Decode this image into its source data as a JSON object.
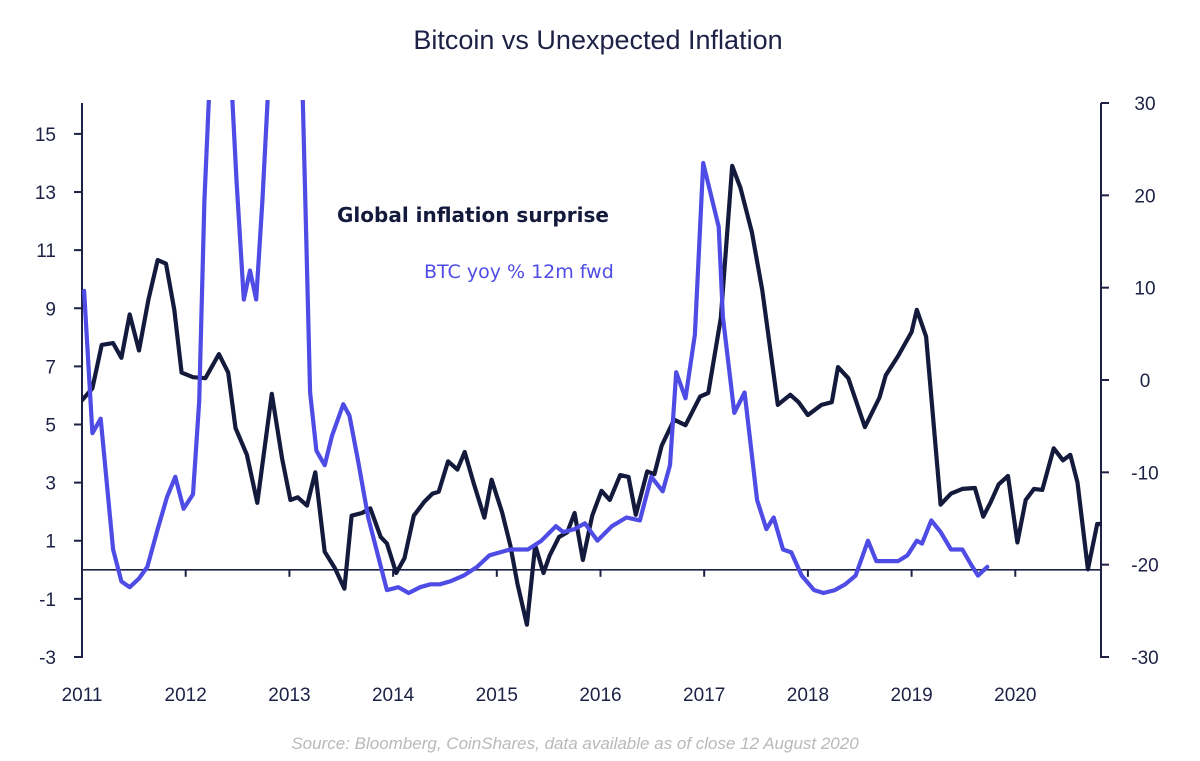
{
  "chart_data": {
    "type": "line",
    "title": "Bitcoin vs Unexpected Inflation",
    "source": "Source:  Bloomberg,  CoinShares,  data available as of close 12 August 2020",
    "x_ticks": [
      "2011",
      "2012",
      "2013",
      "2014",
      "2015",
      "2016",
      "2017",
      "2018",
      "2019",
      "2020"
    ],
    "x_range": [
      2011.0,
      2020.65
    ],
    "left_axis": {
      "ticks": [
        "15",
        "13",
        "11",
        "9",
        "7",
        "5",
        "3",
        "1",
        "-1",
        "-3"
      ],
      "tick_values": [
        15,
        13,
        11,
        9,
        7,
        5,
        3,
        1,
        -1,
        -3
      ],
      "range": [
        -3,
        16
      ]
    },
    "right_axis": {
      "ticks": [
        "30",
        "20",
        "10",
        "0",
        "-10",
        "-20",
        "-30"
      ],
      "tick_values": [
        30,
        20,
        10,
        0,
        -10,
        -20,
        -30
      ],
      "range": [
        -30,
        30
      ]
    },
    "baseline": {
      "axis": "left",
      "value": 0
    },
    "colors": {
      "inflation": "#141a3c",
      "btc": "#4f4ce6",
      "axis": "#1c2145"
    },
    "series": [
      {
        "name": "Global inflation surprise",
        "axis": "right",
        "color": "#141a3c",
        "x": [
          2011.0,
          2011.1,
          2011.19,
          2011.3,
          2011.38,
          2011.46,
          2011.55,
          2011.64,
          2011.73,
          2011.81,
          2011.89,
          2011.96,
          2012.07,
          2012.19,
          2012.32,
          2012.41,
          2012.48,
          2012.59,
          2012.69,
          2012.83,
          2012.93,
          2013.01,
          2013.08,
          2013.17,
          2013.25,
          2013.34,
          2013.44,
          2013.53,
          2013.6,
          2013.7,
          2013.78,
          2013.88,
          2013.94,
          2014.03,
          2014.11,
          2014.2,
          2014.3,
          2014.38,
          2014.44,
          2014.53,
          2014.62,
          2014.69,
          2014.78,
          2014.88,
          2014.95,
          2015.05,
          2015.13,
          2015.2,
          2015.29,
          2015.37,
          2015.45,
          2015.51,
          2015.6,
          2015.68,
          2015.75,
          2015.83,
          2015.92,
          2016.01,
          2016.09,
          2016.19,
          2016.27,
          2016.34,
          2016.45,
          2016.52,
          2016.59,
          2016.71,
          2016.82,
          2016.96,
          2017.04,
          2017.16,
          2017.27,
          2017.35,
          2017.46,
          2017.56,
          2017.71,
          2017.83,
          2017.91,
          2018.0,
          2018.13,
          2018.23,
          2018.29,
          2018.39,
          2018.55,
          2018.69,
          2018.75,
          2018.87,
          2019.0,
          2019.05,
          2019.14,
          2019.28,
          2019.38,
          2019.49,
          2019.61,
          2019.69,
          2019.76,
          2019.84,
          2019.93,
          2020.02,
          2020.1,
          2020.18,
          2020.26,
          2020.37,
          2020.46,
          2020.53,
          2020.6,
          2020.7,
          2020.79,
          2020.87
        ],
        "values": [
          -2.2,
          -0.9,
          3.8,
          4.0,
          2.4,
          7.1,
          3.2,
          8.7,
          13.0,
          12.6,
          7.6,
          0.8,
          0.3,
          0.2,
          2.8,
          0.8,
          -5.2,
          -8.1,
          -13.3,
          -1.5,
          -8.5,
          -13.0,
          -12.7,
          -13.6,
          -10.0,
          -18.6,
          -20.4,
          -22.6,
          -14.7,
          -14.4,
          -13.9,
          -17.0,
          -17.7,
          -20.9,
          -19.3,
          -14.7,
          -13.2,
          -12.3,
          -12.1,
          -8.8,
          -9.7,
          -7.8,
          -11.3,
          -14.9,
          -10.8,
          -14.3,
          -17.9,
          -22.1,
          -26.5,
          -17.9,
          -20.9,
          -19.0,
          -17.0,
          -16.5,
          -14.4,
          -19.5,
          -14.7,
          -12.0,
          -13.0,
          -10.3,
          -10.5,
          -14.6,
          -9.9,
          -10.2,
          -7.1,
          -4.3,
          -4.9,
          -1.8,
          -1.4,
          6.7,
          23.2,
          20.8,
          16.0,
          9.7,
          -2.7,
          -1.6,
          -2.4,
          -3.8,
          -2.7,
          -2.4,
          1.4,
          0.2,
          -5.1,
          -1.9,
          0.5,
          2.6,
          5.2,
          7.6,
          4.7,
          -13.5,
          -12.3,
          -11.8,
          -11.7,
          -14.8,
          -13.3,
          -11.3,
          -10.4,
          -17.6,
          -13.0,
          -11.8,
          -11.9,
          -7.4,
          -8.7,
          -8.1,
          -11.1,
          -20.5,
          -15.6,
          -15.6
        ]
      },
      {
        "name": "BTC yoy % 12m fwd",
        "axis": "left",
        "color": "#4f4ce6",
        "note": "values above 16 run off the top of the plot area (clipped)",
        "x": [
          2011.02,
          2011.1,
          2011.18,
          2011.3,
          2011.38,
          2011.46,
          2011.55,
          2011.63,
          2011.73,
          2011.82,
          2011.9,
          2011.98,
          2012.07,
          2012.13,
          2012.18,
          2012.24,
          2012.43,
          2012.49,
          2012.56,
          2012.62,
          2012.68,
          2012.74,
          2012.81,
          2012.86,
          2013.12,
          2013.2,
          2013.26,
          2013.34,
          2013.41,
          2013.52,
          2013.58,
          2013.66,
          2013.76,
          2013.94,
          2014.05,
          2014.15,
          2014.26,
          2014.36,
          2014.45,
          2014.55,
          2014.68,
          2014.81,
          2014.93,
          2015.03,
          2015.13,
          2015.3,
          2015.43,
          2015.57,
          2015.64,
          2015.75,
          2015.85,
          2015.97,
          2016.11,
          2016.25,
          2016.38,
          2016.49,
          2016.6,
          2016.67,
          2016.73,
          2016.82,
          2016.91,
          2016.99,
          2017.14,
          2017.18,
          2017.29,
          2017.39,
          2017.51,
          2017.6,
          2017.67,
          2017.76,
          2017.84,
          2017.94,
          2018.06,
          2018.15,
          2018.26,
          2018.36,
          2018.46,
          2018.58,
          2018.66,
          2018.77,
          2018.87,
          2018.96,
          2019.05,
          2019.1,
          2019.19,
          2019.28,
          2019.38,
          2019.49,
          2019.57,
          2019.64,
          2019.73
        ],
        "values": [
          9.6,
          4.7,
          5.2,
          0.7,
          -0.4,
          -0.6,
          -0.3,
          0.1,
          1.4,
          2.5,
          3.2,
          2.1,
          2.6,
          5.8,
          12.7,
          16.2,
          16.2,
          13.4,
          9.3,
          10.3,
          9.3,
          12.7,
          16.2,
          16.2,
          16.2,
          6.1,
          4.1,
          3.6,
          4.6,
          5.7,
          5.3,
          3.8,
          1.8,
          -0.7,
          -0.6,
          -0.8,
          -0.6,
          -0.5,
          -0.5,
          -0.4,
          -0.2,
          0.1,
          0.5,
          0.6,
          0.7,
          0.7,
          1.0,
          1.5,
          1.3,
          1.4,
          1.6,
          1.0,
          1.5,
          1.8,
          1.7,
          3.2,
          2.7,
          3.6,
          6.8,
          5.9,
          8.1,
          14.0,
          11.8,
          8.7,
          5.4,
          6.1,
          2.4,
          1.4,
          1.8,
          0.7,
          0.6,
          -0.2,
          -0.7,
          -0.8,
          -0.7,
          -0.5,
          -0.2,
          1.0,
          0.3,
          0.3,
          0.3,
          0.5,
          1.0,
          0.9,
          1.7,
          1.3,
          0.7,
          0.7,
          0.2,
          -0.2,
          0.1
        ]
      }
    ],
    "annotations": [
      {
        "text": "Global inflation surprise",
        "series": "Global inflation surprise"
      },
      {
        "text": "BTC yoy % 12m fwd",
        "series": "BTC yoy % 12m fwd"
      }
    ],
    "grid": false,
    "legend": "inline-annotations (upper-center)"
  }
}
